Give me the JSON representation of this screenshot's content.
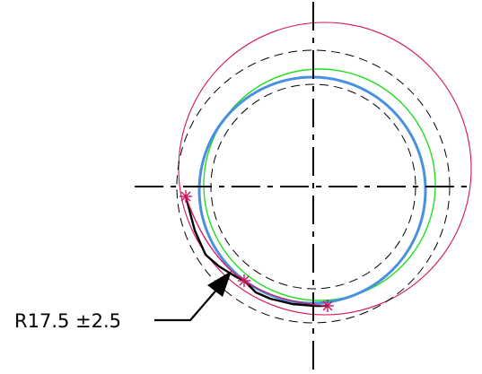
{
  "dimension": {
    "label": "R17.5 ±2.5"
  },
  "colors": {
    "background": "#ffffff",
    "centerline": "#000000",
    "dashed_circles": "#000000",
    "tolerance_outer_circle": "#d4145a",
    "green_profile": "#22dd22",
    "blue_profile": "#4a90e2",
    "measured_profile": "#000000",
    "star_markers": "#c2185b"
  },
  "icons": {
    "markers": "asterisk-star-icon",
    "arrow": "arrowhead-icon"
  }
}
